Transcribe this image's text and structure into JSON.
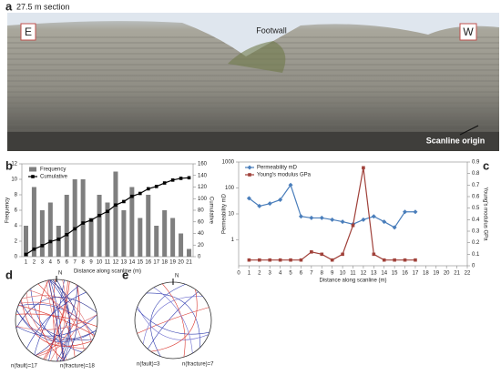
{
  "panels": {
    "a": {
      "letter": "a",
      "title": "27.5 m section",
      "left": "E",
      "right": "W",
      "footwall": "Footwall",
      "origin": "Scanline origin"
    },
    "b": {
      "letter": "b"
    },
    "c": {
      "letter": "c"
    },
    "d": {
      "letter": "d",
      "north": "N",
      "fault": "n(fault)=17",
      "fracture": "n(fracture)=18"
    },
    "e": {
      "letter": "e",
      "north": "N",
      "fault": "n(fault)=3",
      "fracture": "n(fracture)=7"
    }
  },
  "chart_data": [
    {
      "type": "bar",
      "xlabel": "Distance along scanline (m)",
      "ylabel": "Frequency",
      "y2label": "Cumulative",
      "categories": [
        "1",
        "2",
        "3",
        "4",
        "5",
        "6",
        "7",
        "8",
        "9",
        "10",
        "11",
        "12",
        "13",
        "14",
        "15",
        "16",
        "17",
        "18",
        "19",
        "20",
        "21"
      ],
      "series": [
        {
          "name": "Frequency",
          "type": "bar",
          "color": "#7f7f7f",
          "values": [
            4,
            9,
            6,
            7,
            4,
            8,
            10,
            10,
            5,
            8,
            7,
            11,
            6,
            9,
            5,
            8,
            4,
            6,
            5,
            3,
            1
          ]
        },
        {
          "name": "Cumulative",
          "type": "line",
          "marker": "square",
          "axis": "y2",
          "color": "#000000",
          "values": [
            4,
            13,
            19,
            26,
            30,
            38,
            48,
            58,
            63,
            71,
            78,
            89,
            95,
            104,
            109,
            117,
            121,
            127,
            132,
            135,
            136
          ]
        }
      ],
      "ylim": [
        0,
        12
      ],
      "yticks": [
        0,
        2,
        4,
        6,
        8,
        10,
        12
      ],
      "y2lim": [
        0,
        160
      ],
      "y2ticks": [
        0,
        20,
        40,
        60,
        80,
        100,
        120,
        140,
        160
      ],
      "legend": "upper left",
      "grid": false
    },
    {
      "type": "line",
      "xlabel": "Distance along scanline (m)",
      "ylabel": "Permeability mD",
      "y2label": "Young's modulus GPa",
      "x": [
        1,
        2,
        3,
        4,
        5,
        6,
        7,
        8,
        9,
        10,
        11,
        12,
        13,
        14,
        15,
        16,
        17
      ],
      "series": [
        {
          "name": "Permeability mD",
          "type": "line",
          "marker": "diamond",
          "color": "#4a7ebb",
          "values": [
            40,
            20,
            25,
            35,
            130,
            8,
            7,
            7,
            6,
            5,
            4,
            6,
            8,
            5,
            3,
            12,
            12
          ]
        },
        {
          "name": "Young's modulus GPa",
          "type": "line",
          "marker": "square",
          "axis": "y2",
          "color": "#a0413a",
          "values": [
            0.05,
            0.05,
            0.05,
            0.05,
            0.05,
            0.05,
            0.12,
            0.1,
            0.05,
            0.1,
            0.35,
            0.85,
            0.1,
            0.05,
            0.05,
            0.05,
            0.05
          ]
        }
      ],
      "xlim": [
        0,
        22
      ],
      "xticks": [
        0,
        1,
        2,
        3,
        4,
        5,
        6,
        7,
        8,
        9,
        10,
        11,
        12,
        13,
        14,
        15,
        16,
        17,
        18,
        19,
        20,
        21,
        22
      ],
      "ylog": true,
      "ylim": [
        0.1,
        1000
      ],
      "yticks": [
        1,
        10,
        100,
        1000
      ],
      "y2lim": [
        0,
        0.9
      ],
      "y2ticks": [
        0,
        0.1,
        0.2,
        0.3,
        0.4,
        0.5,
        0.6,
        0.7,
        0.8,
        0.9
      ],
      "legend": "upper left",
      "grid": false
    }
  ]
}
